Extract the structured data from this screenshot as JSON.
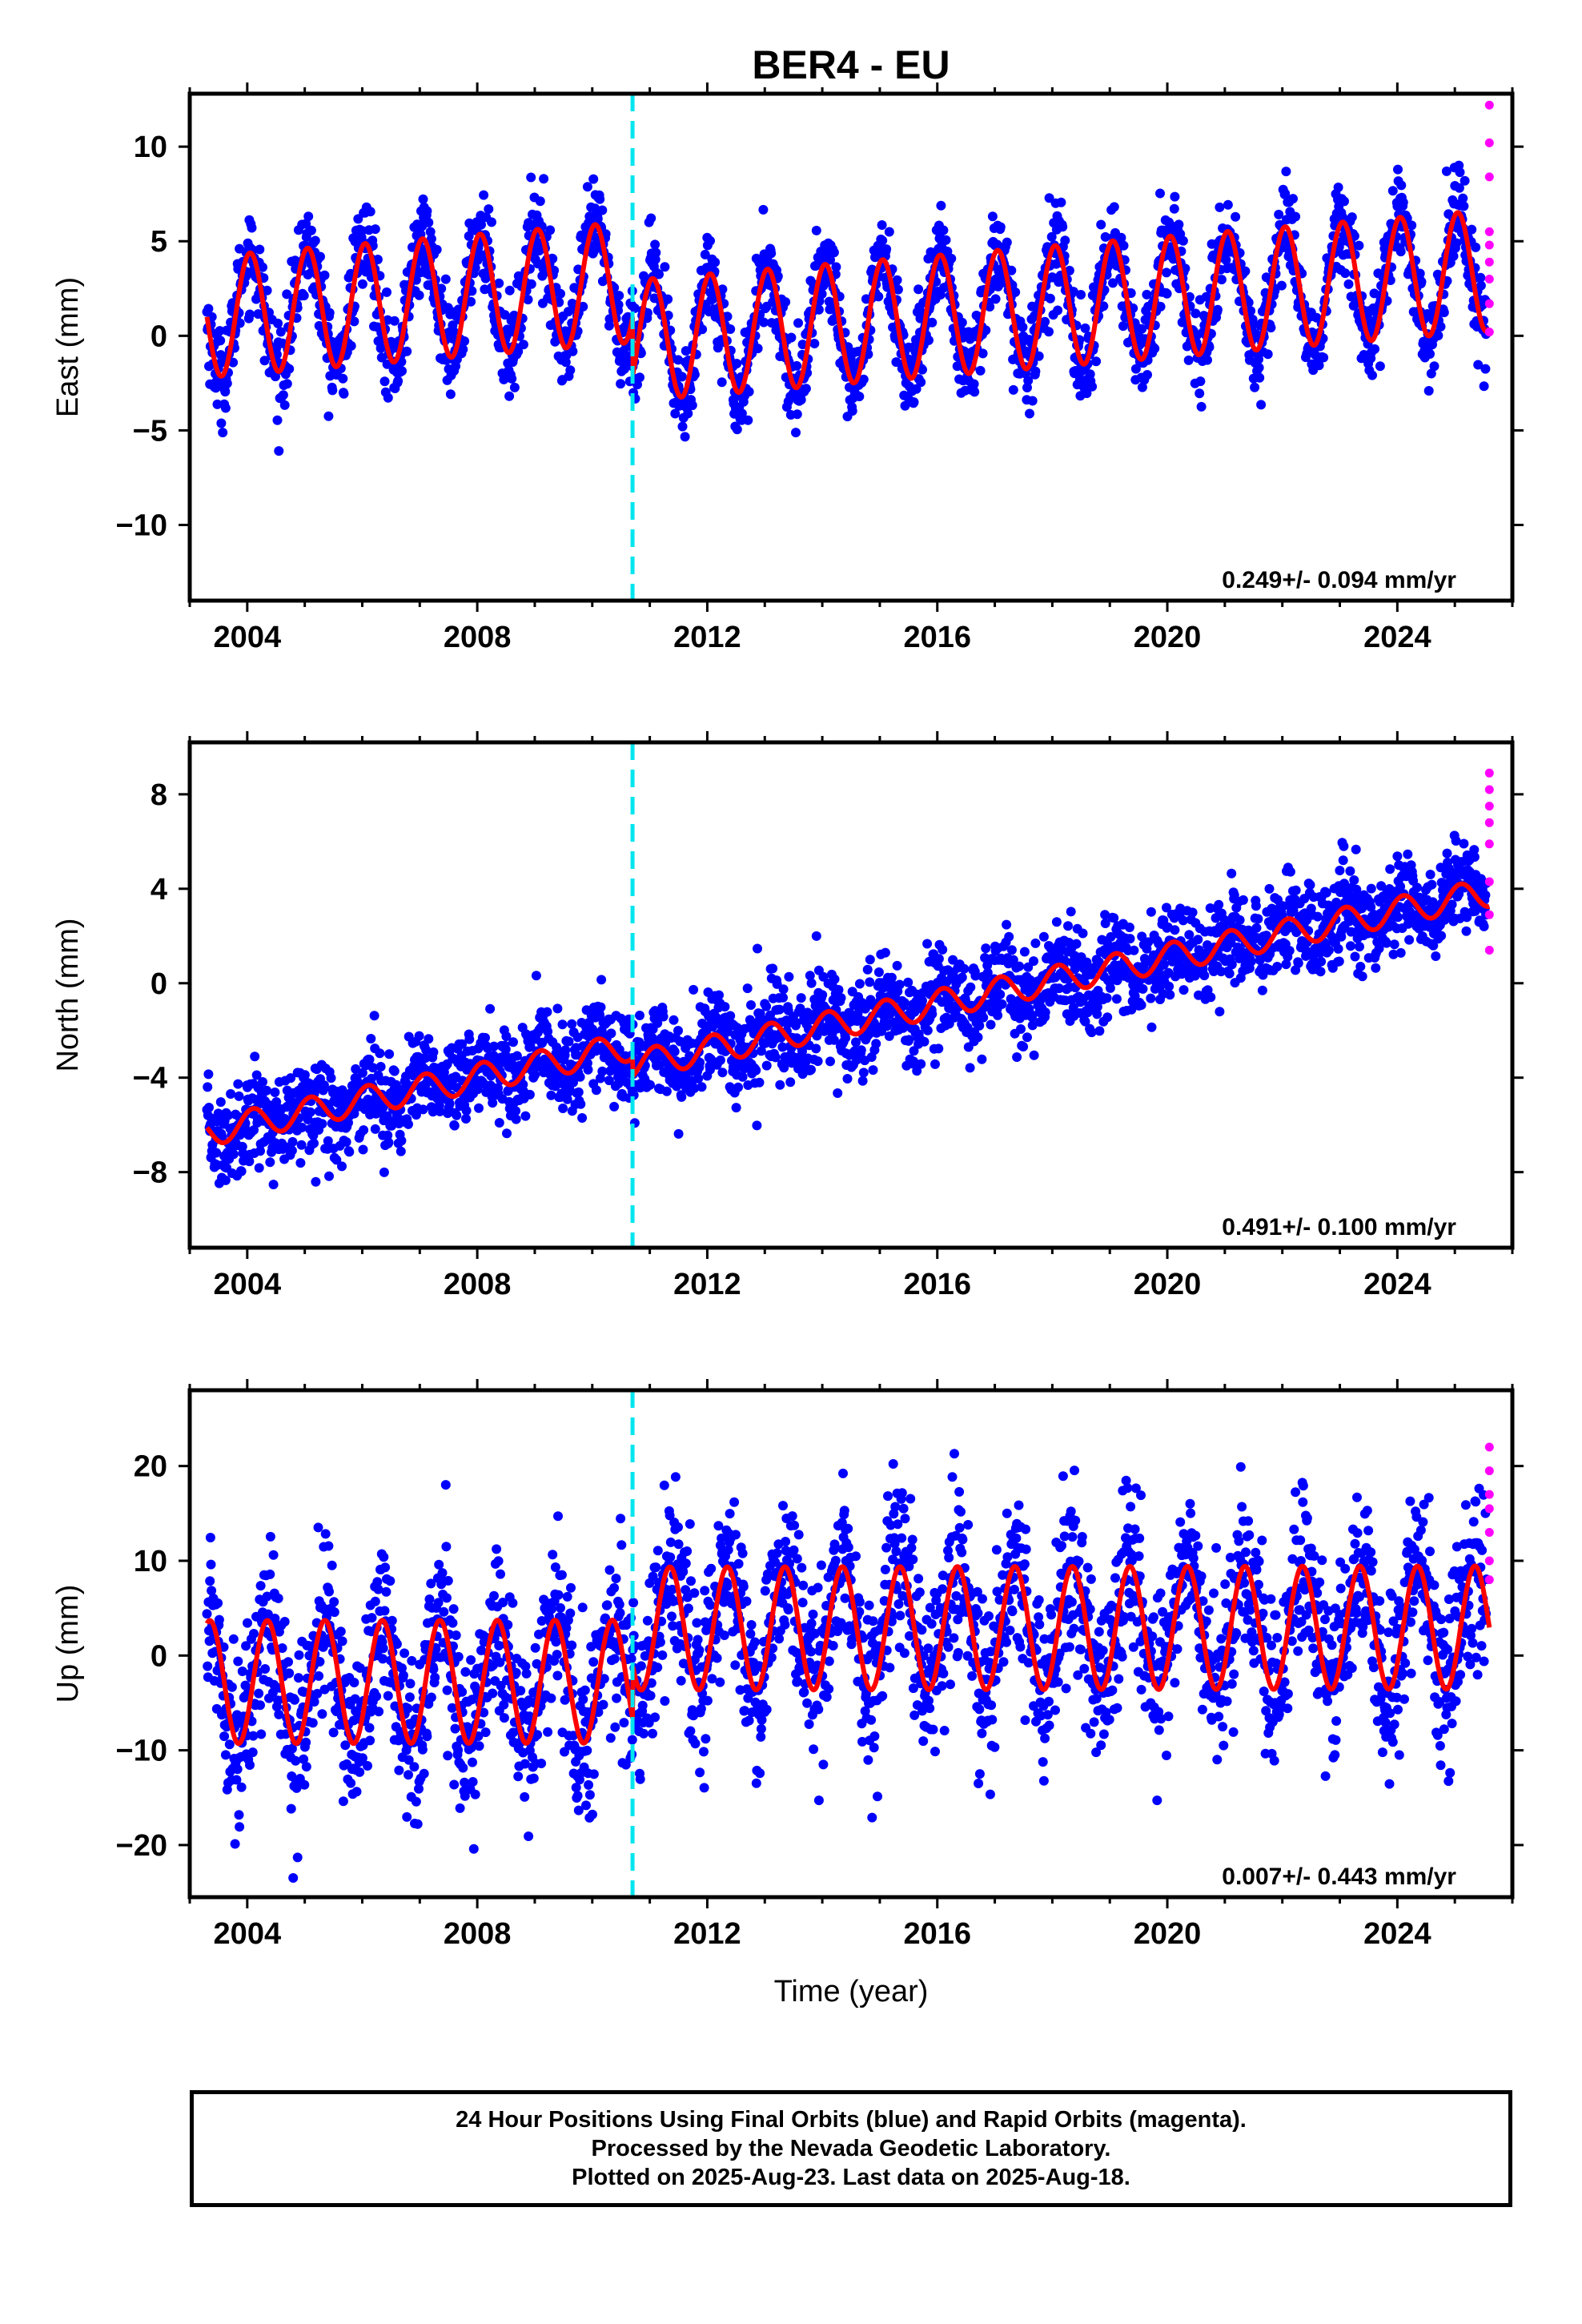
{
  "figure": {
    "title": "BER4 - EU",
    "footer_lines": [
      "24 Hour Positions Using Final Orbits (blue) and Rapid Orbits (magenta).",
      "Processed by the Nevada Geodetic Laboratory.",
      "Plotted on 2025-Aug-23. Last data on 2025-Aug-18."
    ]
  },
  "colors": {
    "final_orbits": "#0000ff",
    "rapid_orbits": "#ff00ff",
    "model_fit": "#ff0000",
    "step_line": "#00e5ee"
  },
  "chart_data": [
    {
      "type": "scatter",
      "component": "East",
      "ylabel": "East (mm)",
      "xlabel": "",
      "xlim": [
        2003.0,
        2026.0
      ],
      "ylim": [
        -14.0,
        12.8
      ],
      "xticks": [
        2004,
        2008,
        2012,
        2016,
        2020,
        2024
      ],
      "yticks": [
        -10,
        -5,
        0,
        5,
        10
      ],
      "ytick_labels": [
        "−10",
        "−5",
        "0",
        "5",
        "10"
      ],
      "rate_text": "0.249+/- 0.094 mm/yr",
      "step_epoch": 2010.7,
      "series": [
        {
          "type": "scatter",
          "color": "#0000ff",
          "model": {
            "t0": 2003.3,
            "t1": 2025.55,
            "intercept_before": 1.0,
            "intercept_after": -2.1,
            "trend_mm_per_yr": 0.249,
            "annual_amp": 3.2,
            "annual_phase": 0.05,
            "scatter_sd": 1.2
          }
        },
        {
          "type": "line",
          "color": "#ff0000",
          "model": {
            "t0": 2003.3,
            "t1": 2025.6,
            "intercept_before": 1.0,
            "intercept_after": -2.1,
            "trend_mm_per_yr": 0.249,
            "annual_amp": 3.2,
            "annual_phase": 0.05
          }
        },
        {
          "type": "scatter",
          "color": "#ff00ff",
          "x": [
            2025.6,
            2025.6,
            2025.6,
            2025.6,
            2025.6,
            2025.6,
            2025.6,
            2025.6,
            2025.6
          ],
          "y": [
            12.2,
            10.2,
            8.4,
            5.5,
            4.8,
            3.9,
            3.0,
            1.7,
            0.2
          ]
        }
      ]
    },
    {
      "type": "scatter",
      "component": "North",
      "ylabel": "North (mm)",
      "xlabel": "",
      "xlim": [
        2003.0,
        2026.0
      ],
      "ylim": [
        -11.2,
        10.2
      ],
      "xticks": [
        2004,
        2008,
        2012,
        2016,
        2020,
        2024
      ],
      "yticks": [
        -8,
        -4,
        0,
        4,
        8
      ],
      "ytick_labels": [
        "−8",
        "−4",
        "0",
        "4",
        "8"
      ],
      "rate_text": "0.491+/- 0.100 mm/yr",
      "step_epoch": 2010.7,
      "series": [
        {
          "type": "scatter",
          "color": "#0000ff",
          "model": {
            "t0": 2003.3,
            "t1": 2025.55,
            "intercept_before": -6.3,
            "intercept_after": -7.1,
            "trend_mm_per_yr": 0.491,
            "annual_amp": 0.6,
            "annual_phase": 0.1,
            "scatter_sd": 1.0
          }
        },
        {
          "type": "line",
          "color": "#ff0000",
          "model": {
            "t0": 2003.3,
            "t1": 2025.6,
            "intercept_before": -6.3,
            "intercept_after": -7.1,
            "trend_mm_per_yr": 0.491,
            "annual_amp": 0.6,
            "annual_phase": 0.1
          }
        },
        {
          "type": "scatter",
          "color": "#ff00ff",
          "x": [
            2025.6,
            2025.6,
            2025.6,
            2025.6,
            2025.6,
            2025.6,
            2025.6,
            2025.6
          ],
          "y": [
            8.9,
            8.2,
            7.5,
            6.8,
            5.9,
            4.3,
            2.9,
            1.4
          ]
        }
      ]
    },
    {
      "type": "scatter",
      "component": "Up",
      "ylabel": "Up (mm)",
      "xlabel": "Time (year)",
      "xlim": [
        2003.0,
        2026.0
      ],
      "ylim": [
        -25.5,
        28.0
      ],
      "xticks": [
        2004,
        2008,
        2012,
        2016,
        2020,
        2024
      ],
      "yticks": [
        -20,
        -10,
        0,
        10,
        20
      ],
      "ytick_labels": [
        "−20",
        "−10",
        "0",
        "10",
        "20"
      ],
      "rate_text": "0.007+/- 0.443 mm/yr",
      "step_epoch": 2010.7,
      "series": [
        {
          "type": "scatter",
          "color": "#0000ff",
          "model": {
            "t0": 2003.3,
            "t1": 2025.55,
            "intercept_before": -2.8,
            "intercept_after": 2.8,
            "trend_mm_per_yr": 0.007,
            "annual_amp": 6.5,
            "annual_phase": 0.35,
            "scatter_sd": 4.5
          }
        },
        {
          "type": "line",
          "color": "#ff0000",
          "model": {
            "t0": 2003.3,
            "t1": 2025.6,
            "intercept_before": -2.8,
            "intercept_after": 2.8,
            "trend_mm_per_yr": 0.007,
            "annual_amp": 6.5,
            "annual_phase": 0.35
          }
        },
        {
          "type": "scatter",
          "color": "#ff00ff",
          "x": [
            2025.6,
            2025.6,
            2025.6,
            2025.6,
            2025.6,
            2025.6,
            2025.6
          ],
          "y": [
            22.0,
            19.5,
            17.0,
            15.5,
            13.0,
            10.0,
            8.0
          ]
        }
      ]
    }
  ]
}
